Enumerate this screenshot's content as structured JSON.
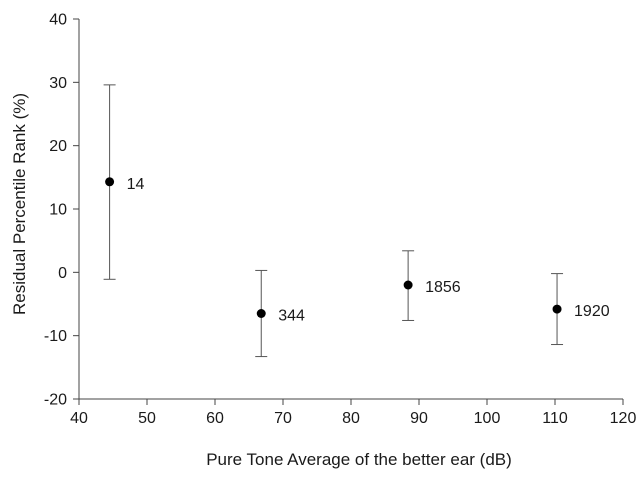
{
  "chart_data": {
    "type": "scatter",
    "title": "",
    "xlabel": "Pure Tone Average of the better ear (dB)",
    "ylabel": "Residual Percentile Rank (%)",
    "xlim": [
      40,
      120
    ],
    "ylim": [
      -20,
      40
    ],
    "x_ticks": [
      "40",
      "50",
      "60",
      "70",
      "80",
      "90",
      "100",
      "110",
      "120"
    ],
    "y_ticks": [
      "-20",
      "-10",
      "0",
      "10",
      "20",
      "30",
      "40"
    ],
    "grid": false,
    "legend": "none",
    "error_bars": true,
    "points": [
      {
        "x": 44.5,
        "y": 14.3,
        "err_low": -1.1,
        "err_high": 29.6,
        "label": "14"
      },
      {
        "x": 66.8,
        "y": -6.5,
        "err_low": -13.3,
        "err_high": 0.3,
        "label": "344"
      },
      {
        "x": 88.4,
        "y": -2.0,
        "err_low": -7.6,
        "err_high": 3.4,
        "label": "1856"
      },
      {
        "x": 110.3,
        "y": -5.8,
        "err_low": -11.4,
        "err_high": -0.2,
        "label": "1920"
      }
    ],
    "colors": {
      "marker": "#000000",
      "error_bar": "#555555",
      "axis": "#444444",
      "text": "#1a1a1a"
    }
  }
}
